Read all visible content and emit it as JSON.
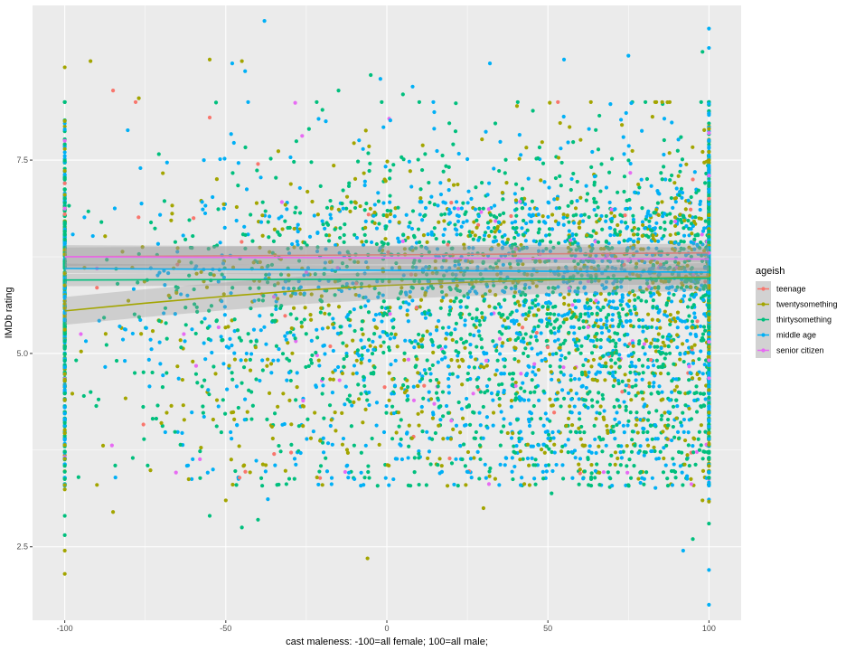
{
  "chart_data": {
    "type": "scatter",
    "xlabel": "cast maleness: -100=all female; 100=all male;",
    "ylabel": "IMDb rating",
    "xlim": [
      -110,
      110
    ],
    "ylim": [
      1.55,
      9.5
    ],
    "x_ticks": [
      -100,
      -50,
      0,
      50,
      100
    ],
    "x_tick_labels": [
      "-100",
      "-50",
      "0",
      "50",
      "100"
    ],
    "y_ticks": [
      2.5,
      5.0,
      7.5
    ],
    "y_tick_labels": [
      "2.5",
      "5.0",
      "7.5"
    ],
    "grid": true,
    "background": "#ebebeb",
    "legend": {
      "title": "ageish",
      "position": "right",
      "items": [
        "teenage",
        "twentysomething",
        "thirtysomething",
        "middle age",
        "senior citizen"
      ]
    },
    "series": [
      {
        "name": "teenage",
        "color": "#F8766D",
        "points": [
          [
            -85,
            8.4
          ],
          [
            -78,
            8.25
          ],
          [
            -55,
            8.05
          ],
          [
            -40,
            7.45
          ],
          [
            -35,
            3.7
          ],
          [
            -100,
            7.2
          ],
          [
            -60,
            6.75
          ],
          [
            -90,
            5.85
          ],
          [
            20,
            6.95
          ],
          [
            60,
            3.45
          ],
          [
            85,
            6.15
          ],
          [
            95,
            7.25
          ],
          [
            -100,
            6.8
          ],
          [
            -65,
            6.15
          ],
          [
            100,
            7.0
          ]
        ],
        "trend": {
          "x": [
            -100,
            100
          ],
          "y": [
            6.25,
            6.3
          ],
          "band": 0.12
        }
      },
      {
        "name": "twentysomething",
        "color": "#A3A500",
        "points": [
          [
            -100,
            8.7
          ],
          [
            -92,
            8.78
          ],
          [
            -77,
            8.3
          ],
          [
            -55,
            8.8
          ],
          [
            -45,
            8.78
          ],
          [
            -100,
            4.4
          ],
          [
            -100,
            2.45
          ],
          [
            -100,
            2.15
          ],
          [
            -6,
            2.35
          ],
          [
            -90,
            3.3
          ],
          [
            -85,
            2.95
          ],
          [
            -70,
            4.1
          ],
          [
            -50,
            3.1
          ],
          [
            -20,
            3.3
          ],
          [
            30,
            3.0
          ],
          [
            60,
            3.5
          ],
          [
            98,
            3.1
          ]
        ],
        "trend": {
          "x": [
            -100,
            -75,
            -50,
            -25,
            0,
            25,
            50,
            75,
            100
          ],
          "y": [
            5.55,
            5.65,
            5.74,
            5.82,
            5.88,
            5.92,
            5.95,
            5.97,
            5.99
          ],
          "band": 0.18
        }
      },
      {
        "name": "thirtysomething",
        "color": "#00BF7D",
        "points": [
          [
            -100,
            2.65
          ],
          [
            -100,
            2.9
          ],
          [
            -55,
            2.9
          ],
          [
            -45,
            2.75
          ],
          [
            -40,
            2.85
          ],
          [
            -20,
            8.15
          ],
          [
            -15,
            8.4
          ],
          [
            -5,
            8.6
          ],
          [
            5,
            8.35
          ],
          [
            95,
            2.6
          ],
          [
            98,
            8.9
          ],
          [
            100,
            2.8
          ]
        ],
        "trend": {
          "x": [
            -100,
            100
          ],
          "y": [
            5.95,
            5.97
          ],
          "band": 0.08
        }
      },
      {
        "name": "middle age",
        "color": "#00B0F6",
        "points": [
          [
            -38,
            9.3
          ],
          [
            -48,
            8.75
          ],
          [
            -44,
            8.65
          ],
          [
            -2,
            8.55
          ],
          [
            8,
            8.45
          ],
          [
            32,
            8.75
          ],
          [
            55,
            8.8
          ],
          [
            75,
            8.85
          ],
          [
            92,
            2.45
          ],
          [
            100,
            1.75
          ],
          [
            100,
            2.2
          ],
          [
            100,
            9.2
          ],
          [
            100,
            8.95
          ]
        ],
        "trend": {
          "x": [
            -100,
            100
          ],
          "y": [
            6.1,
            6.05
          ],
          "band": 0.06
        }
      },
      {
        "name": "senior citizen",
        "color": "#E76BF3",
        "points": [
          [
            -95,
            5.25
          ],
          [
            -100,
            7.75
          ],
          [
            -90,
            6.1
          ],
          [
            -25,
            6.05
          ],
          [
            5,
            6.45
          ],
          [
            40,
            6.35
          ],
          [
            75,
            6.2
          ],
          [
            100,
            7.85
          ],
          [
            100,
            7.3
          ],
          [
            100,
            6.3
          ]
        ],
        "trend": {
          "x": [
            -100,
            100
          ],
          "y": [
            6.25,
            6.22
          ],
          "band": 0.15
        }
      }
    ]
  }
}
